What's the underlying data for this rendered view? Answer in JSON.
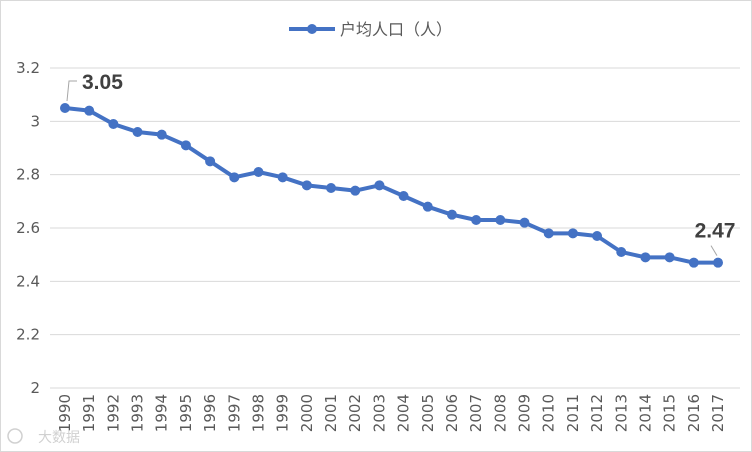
{
  "chart_data": {
    "type": "line",
    "title": "",
    "xlabel": "",
    "ylabel": "",
    "ylim": [
      2,
      3.2
    ],
    "yticks": [
      2,
      2.2,
      2.4,
      2.6,
      2.8,
      3,
      3.2
    ],
    "ytick_labels": [
      "2",
      "2.2",
      "2.4",
      "2.6",
      "2.8",
      "3",
      "3.2"
    ],
    "grid": "horizontal",
    "legend_position": "top-center",
    "color": "#4472C4",
    "categories": [
      "1990",
      "1991",
      "1992",
      "1993",
      "1994",
      "1995",
      "1996",
      "1997",
      "1998",
      "1999",
      "2000",
      "2001",
      "2002",
      "2003",
      "2004",
      "2005",
      "2006",
      "2007",
      "2008",
      "2009",
      "2010",
      "2011",
      "2012",
      "2013",
      "2014",
      "2015",
      "2016",
      "2017"
    ],
    "series": [
      {
        "name": "户均人口（人）",
        "values": [
          3.05,
          3.04,
          2.99,
          2.96,
          2.95,
          2.91,
          2.85,
          2.79,
          2.81,
          2.79,
          2.76,
          2.75,
          2.74,
          2.76,
          2.72,
          2.68,
          2.65,
          2.63,
          2.63,
          2.62,
          2.58,
          2.58,
          2.57,
          2.51,
          2.49,
          2.49,
          2.47,
          2.47
        ]
      }
    ],
    "annotations": [
      {
        "index": 0,
        "text": "3.05"
      },
      {
        "index": 27,
        "text": "2.47"
      }
    ]
  },
  "watermark": {
    "text": "大数据",
    "icon": "watermark-logo-icon"
  }
}
